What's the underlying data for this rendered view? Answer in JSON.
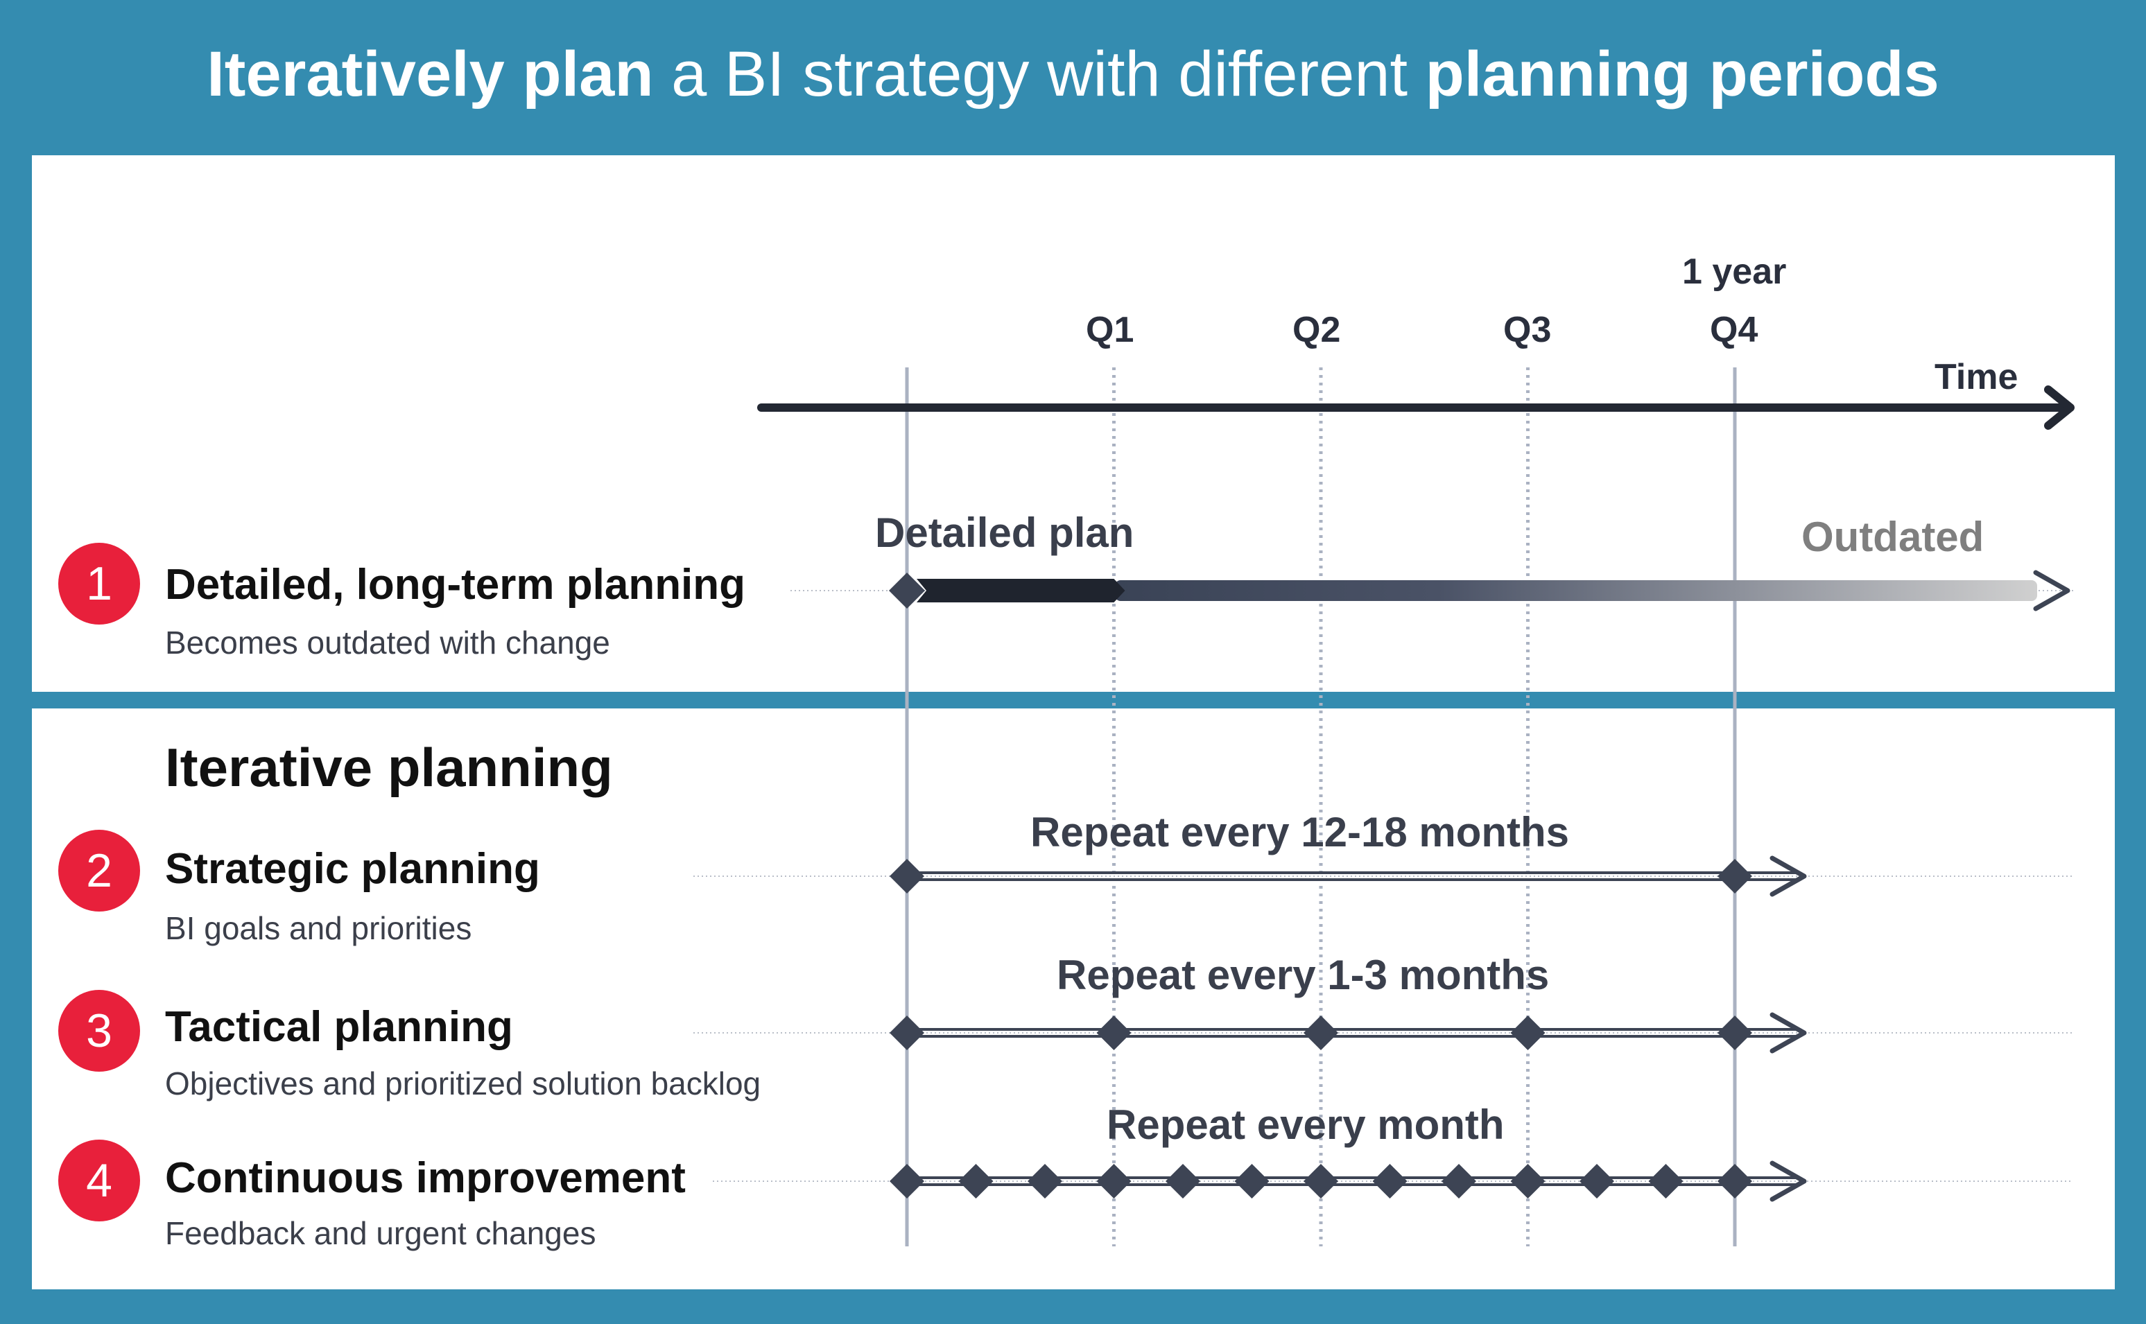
{
  "title": {
    "part1_bold": "Iteratively plan",
    "part2": " a BI strategy with different ",
    "part3_bold": "planning periods"
  },
  "timeline": {
    "year_label": "1 year",
    "quarters": [
      "Q1",
      "Q2",
      "Q3",
      "Q4"
    ],
    "axis_label": "Time"
  },
  "long_term": {
    "number": "1",
    "title": "Detailed, long-term planning",
    "subtitle": "Becomes outdated with change",
    "start_label": "Detailed plan",
    "end_label": "Outdated"
  },
  "iterative": {
    "heading": "Iterative planning",
    "rows": [
      {
        "number": "2",
        "title": "Strategic planning",
        "subtitle": "BI goals and priorities",
        "repeat_label": "Repeat every 12-18 months",
        "period_months": 12
      },
      {
        "number": "3",
        "title": "Tactical planning",
        "subtitle": "Objectives and prioritized solution backlog",
        "repeat_label": "Repeat every 1-3 months",
        "period_months": 3
      },
      {
        "number": "4",
        "title": "Continuous improvement",
        "subtitle": "Feedback and urgent changes",
        "repeat_label": "Repeat every month",
        "period_months": 1
      }
    ]
  },
  "colors": {
    "background": "#348cb0",
    "badge": "#e8203b",
    "dark": "#232833",
    "marker": "#3d4454",
    "gridline": "#aab2c2",
    "faded": "#d0d0d0"
  }
}
